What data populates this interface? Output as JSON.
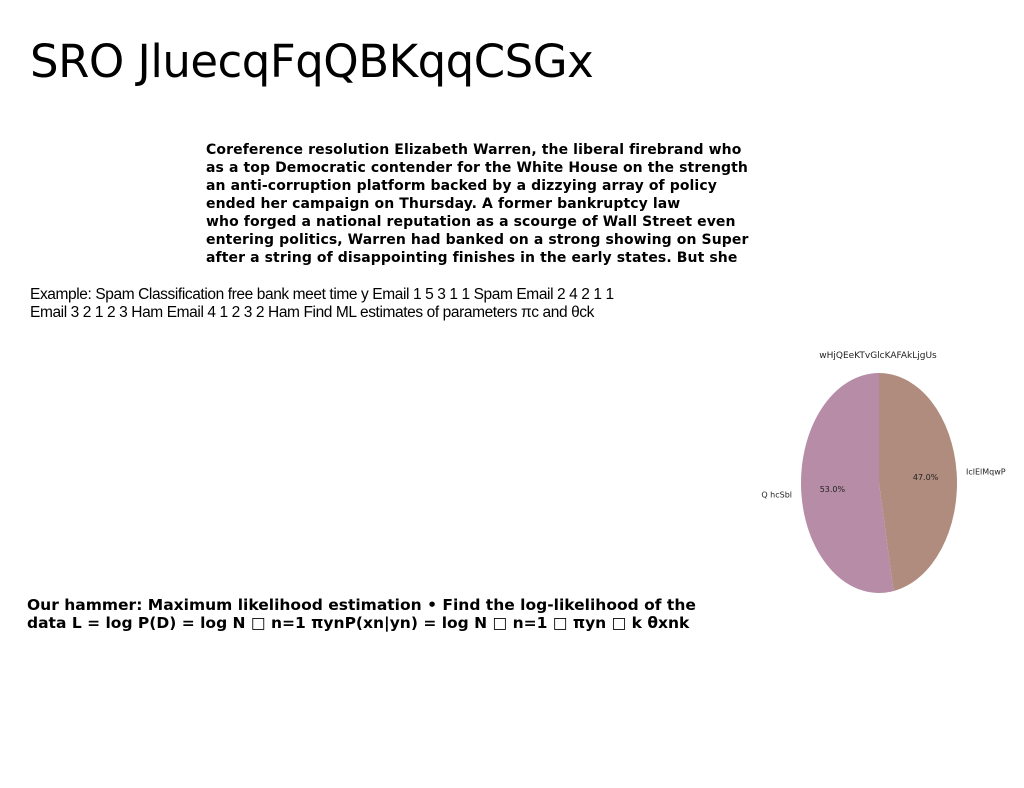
{
  "title": "SRO JluecqFqQBKqqCSGx",
  "paragraph_lines": [
    "Coreference resolution Elizabeth Warren, the liberal firebrand who",
    "as a top Democratic contender for the White House on the strength",
    "an anti-corruption platform backed by a dizzying array of policy",
    "ended her campaign on Thursday. A former bankruptcy law",
    "who forged a national reputation as a scourge of Wall Street even",
    "entering politics, Warren had banked on a strong showing on Super",
    "after a string of disappointing finishes in the early states. But she"
  ],
  "example_lines": [
    "Example: Spam Classification free bank meet time y Email 1 5 3 1 1 Spam Email 2 4 2 1 1",
    "Email 3 2 1 2 3 Ham Email 4 1 2 3 2 Ham Find ML estimates of parameters πc and θck"
  ],
  "hammer_lines": [
    "Our hammer: Maximum likelihood estimation • Find the log-likelihood of the",
    "data L = log P(D) = log N □ n=1 πynP(xn|yn) = log N □ n=1 □ πyn □ k θxnk"
  ],
  "chart_data": {
    "type": "pie",
    "title": "wHjQEeKTvGlcKAFAkLjgUs",
    "slices": [
      {
        "label": "IclElMqwP",
        "value": 47.0,
        "pct_label": "47.0%",
        "color": "#b08c7e"
      },
      {
        "label": "Q hcSbl",
        "value": 53.0,
        "pct_label": "53.0%",
        "color": "#b68ca6"
      }
    ],
    "start": "top",
    "direction": "clockwise"
  }
}
